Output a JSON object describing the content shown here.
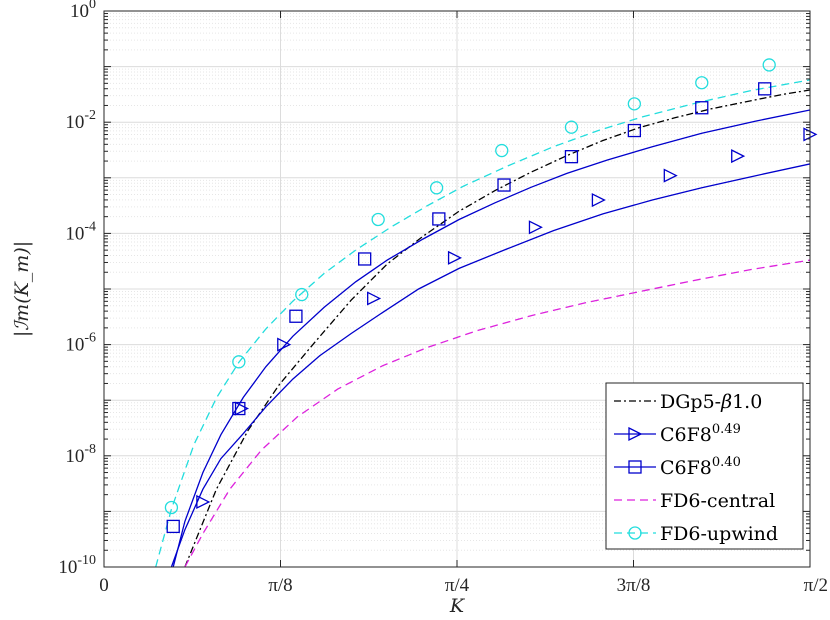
{
  "chart_data": {
    "type": "line",
    "title": "",
    "xlabel": "K",
    "ylabel": "|ℐm(K_m)|",
    "x_scale": "linear",
    "y_scale": "log",
    "xlim": [
      0,
      1.5708
    ],
    "ylim_exp": [
      -10,
      0
    ],
    "grid": true,
    "legend_position": "bottom-right",
    "x_ticks": [
      {
        "value": 0,
        "label": "0"
      },
      {
        "value": 0.3927,
        "label": "π/8"
      },
      {
        "value": 0.7854,
        "label": "π/4"
      },
      {
        "value": 1.1781,
        "label": "3π/8"
      },
      {
        "value": 1.5708,
        "label": "π/2"
      }
    ],
    "y_ticks": [
      {
        "exp": 0,
        "base": "10",
        "sup": "0"
      },
      {
        "exp": -2,
        "base": "10",
        "sup": "-2"
      },
      {
        "exp": -4,
        "base": "10",
        "sup": "-4"
      },
      {
        "exp": -6,
        "base": "10",
        "sup": "-6"
      },
      {
        "exp": -8,
        "base": "10",
        "sup": "-8"
      },
      {
        "exp": -10,
        "base": "10",
        "sup": "-10"
      }
    ],
    "series": [
      {
        "name": "DGp5-β1.0",
        "legend_main": "DGp5-",
        "legend_greek": "β",
        "legend_tail": "1.0",
        "color": "#000000",
        "dash": "7,3,2,3",
        "marker": "none",
        "points": [
          [
            0.18,
            -10.0
          ],
          [
            0.25,
            -8.6
          ],
          [
            0.32,
            -7.55
          ],
          [
            0.39,
            -6.72
          ],
          [
            0.47,
            -5.95
          ],
          [
            0.55,
            -5.2
          ],
          [
            0.63,
            -4.55
          ],
          [
            0.71,
            -4.05
          ],
          [
            0.79,
            -3.6
          ],
          [
            0.87,
            -3.23
          ],
          [
            0.95,
            -2.9
          ],
          [
            1.03,
            -2.6
          ],
          [
            1.11,
            -2.33
          ],
          [
            1.19,
            -2.1
          ],
          [
            1.27,
            -1.92
          ],
          [
            1.35,
            -1.76
          ],
          [
            1.43,
            -1.63
          ],
          [
            1.51,
            -1.5
          ],
          [
            1.5708,
            -1.42
          ]
        ],
        "marker_points": []
      },
      {
        "name": "C6F8^0.49",
        "legend_main": "C6F8",
        "legend_sup": "0.49",
        "color": "#0000cc",
        "dash": "",
        "marker": "triangle-right",
        "points": [
          [
            0.15,
            -10.0
          ],
          [
            0.18,
            -9.33
          ],
          [
            0.22,
            -8.6
          ],
          [
            0.26,
            -8.05
          ],
          [
            0.31,
            -7.6
          ],
          [
            0.36,
            -7.12
          ],
          [
            0.42,
            -6.62
          ],
          [
            0.48,
            -6.2
          ],
          [
            0.55,
            -5.8
          ],
          [
            0.62,
            -5.42
          ],
          [
            0.7,
            -5.0
          ],
          [
            0.79,
            -4.63
          ],
          [
            0.89,
            -4.3
          ],
          [
            1.0,
            -3.95
          ],
          [
            1.11,
            -3.65
          ],
          [
            1.22,
            -3.4
          ],
          [
            1.33,
            -3.18
          ],
          [
            1.44,
            -2.98
          ],
          [
            1.5708,
            -2.75
          ]
        ],
        "marker_points": [
          [
            0.22,
            -8.83
          ],
          [
            0.306,
            -7.15
          ],
          [
            0.4,
            -6.0
          ],
          [
            0.6,
            -5.17
          ],
          [
            0.78,
            -4.44
          ],
          [
            0.96,
            -3.89
          ],
          [
            1.1,
            -3.4
          ],
          [
            1.26,
            -2.96
          ],
          [
            1.41,
            -2.61
          ],
          [
            1.5708,
            -2.22
          ]
        ]
      },
      {
        "name": "C6F8^0.40",
        "legend_main": "C6F8",
        "legend_sup": "0.40",
        "color": "#0000cc",
        "dash": "",
        "marker": "square",
        "points": [
          [
            0.154,
            -10.0
          ],
          [
            0.18,
            -9.18
          ],
          [
            0.22,
            -8.3
          ],
          [
            0.26,
            -7.62
          ],
          [
            0.31,
            -6.95
          ],
          [
            0.36,
            -6.4
          ],
          [
            0.42,
            -5.85
          ],
          [
            0.49,
            -5.33
          ],
          [
            0.56,
            -4.87
          ],
          [
            0.63,
            -4.48
          ],
          [
            0.71,
            -4.1
          ],
          [
            0.79,
            -3.75
          ],
          [
            0.87,
            -3.45
          ],
          [
            0.95,
            -3.17
          ],
          [
            1.03,
            -2.92
          ],
          [
            1.12,
            -2.68
          ],
          [
            1.22,
            -2.44
          ],
          [
            1.33,
            -2.2
          ],
          [
            1.45,
            -1.98
          ],
          [
            1.5708,
            -1.78
          ]
        ],
        "marker_points": [
          [
            0.154,
            -9.27
          ],
          [
            0.3,
            -7.15
          ],
          [
            0.427,
            -5.49
          ],
          [
            0.58,
            -4.46
          ],
          [
            0.745,
            -3.74
          ],
          [
            0.89,
            -3.13
          ],
          [
            1.04,
            -2.62
          ],
          [
            1.18,
            -2.15
          ],
          [
            1.33,
            -1.74
          ],
          [
            1.47,
            -1.4
          ]
        ]
      },
      {
        "name": "FD6-central",
        "legend_main": "FD6-central",
        "color": "#dd22dd",
        "dash": "8,5",
        "marker": "none",
        "points": [
          [
            0.18,
            -10.0
          ],
          [
            0.22,
            -9.4
          ],
          [
            0.28,
            -8.6
          ],
          [
            0.35,
            -7.9
          ],
          [
            0.43,
            -7.3
          ],
          [
            0.52,
            -6.8
          ],
          [
            0.62,
            -6.38
          ],
          [
            0.72,
            -6.05
          ],
          [
            0.83,
            -5.75
          ],
          [
            0.95,
            -5.48
          ],
          [
            1.07,
            -5.25
          ],
          [
            1.19,
            -5.05
          ],
          [
            1.31,
            -4.85
          ],
          [
            1.44,
            -4.65
          ],
          [
            1.5708,
            -4.48
          ]
        ],
        "marker_points": []
      },
      {
        "name": "FD6-upwind",
        "legend_main": "FD6-upwind",
        "color": "#22dddd",
        "dash": "8,5",
        "marker": "circle",
        "points": [
          [
            0.115,
            -10.0
          ],
          [
            0.15,
            -8.96
          ],
          [
            0.2,
            -7.8
          ],
          [
            0.25,
            -6.96
          ],
          [
            0.3,
            -6.32
          ],
          [
            0.36,
            -5.72
          ],
          [
            0.42,
            -5.22
          ],
          [
            0.49,
            -4.72
          ],
          [
            0.56,
            -4.3
          ],
          [
            0.64,
            -3.88
          ],
          [
            0.72,
            -3.5
          ],
          [
            0.8,
            -3.15
          ],
          [
            0.9,
            -2.78
          ],
          [
            1.0,
            -2.44
          ],
          [
            1.1,
            -2.15
          ],
          [
            1.2,
            -1.9
          ],
          [
            1.32,
            -1.65
          ],
          [
            1.44,
            -1.43
          ],
          [
            1.5708,
            -1.24
          ]
        ],
        "marker_points": [
          [
            0.15,
            -8.93
          ],
          [
            0.3,
            -6.31
          ],
          [
            0.44,
            -5.1
          ],
          [
            0.61,
            -3.75
          ],
          [
            0.74,
            -3.18
          ],
          [
            0.885,
            -2.51
          ],
          [
            1.04,
            -2.09
          ],
          [
            1.18,
            -1.67
          ],
          [
            1.33,
            -1.29
          ],
          [
            1.48,
            -0.97
          ]
        ]
      }
    ]
  }
}
